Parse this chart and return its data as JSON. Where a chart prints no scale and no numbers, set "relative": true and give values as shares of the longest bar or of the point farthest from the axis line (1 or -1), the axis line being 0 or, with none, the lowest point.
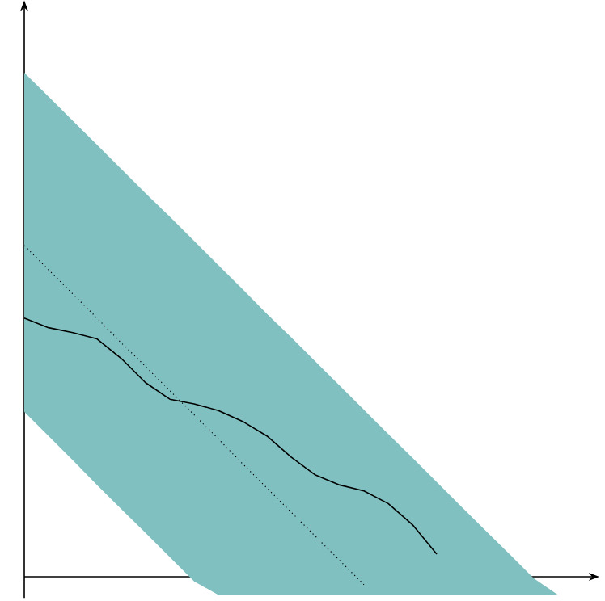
{
  "chart_data": {
    "type": "line",
    "relative": true,
    "categories": [
      null,
      null,
      null,
      null,
      null,
      null,
      null,
      null,
      null,
      null,
      null,
      null,
      null,
      null,
      null,
      null,
      null,
      null,
      null,
      null,
      null,
      null,
      null
    ],
    "series": [
      {
        "type": "line",
        "color": "#000000",
        "line_style": "dotted",
        "values": [
          1.0,
          0.927,
          0.854,
          0.781,
          0.706,
          0.635,
          0.562,
          0.489,
          0.416,
          0.341,
          0.268,
          0.195,
          0.122,
          0.049,
          -0.024,
          null,
          null,
          null,
          null,
          null,
          null,
          null,
          null
        ]
      },
      {
        "type": "line",
        "color": "#000000",
        "line_style": "solid",
        "values": [
          0.781,
          0.752,
          0.737,
          0.718,
          0.659,
          0.586,
          0.536,
          0.522,
          0.502,
          0.469,
          0.425,
          0.361,
          0.307,
          0.277,
          0.259,
          0.221,
          0.157,
          0.068,
          null,
          null,
          null,
          null,
          null
        ],
        "upper": [
          1.522,
          1.45,
          1.377,
          1.304,
          1.231,
          1.158,
          1.087,
          1.014,
          0.941,
          0.868,
          0.794,
          0.723,
          0.65,
          0.577,
          0.504,
          0.431,
          0.359,
          0.286,
          0.213,
          0.14,
          0.068,
          -0.005,
          -0.055
        ],
        "lower": [
          0.498,
          0.425,
          0.352,
          0.277,
          0.204,
          0.132,
          0.059,
          -0.014,
          -0.055,
          -0.055,
          -0.055,
          -0.055,
          -0.055,
          -0.055,
          -0.055,
          -0.055,
          -0.055,
          -0.055,
          -0.055,
          -0.055,
          -0.055,
          -0.055,
          -0.055
        ]
      }
    ]
  }
}
